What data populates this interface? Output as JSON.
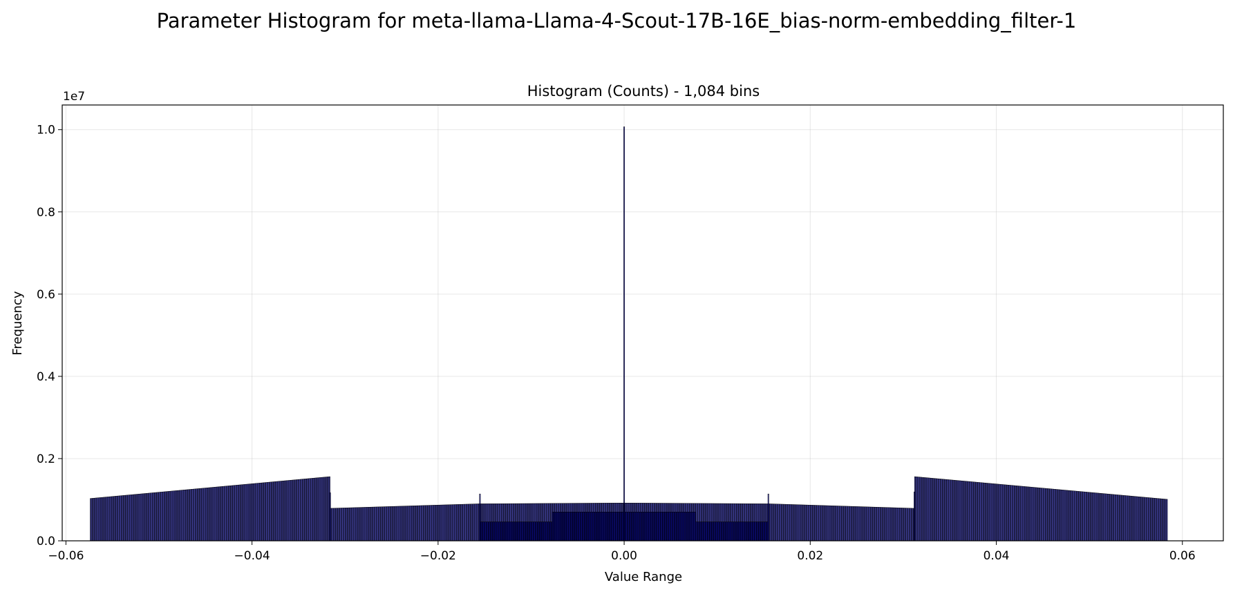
{
  "chart_data": {
    "type": "bar",
    "suptitle": "Parameter Histogram for meta-llama-Llama-4-Scout-17B-16E_bias-norm-embedding_filter-1",
    "title": "Histogram (Counts) - 1,084 bins",
    "xlabel": "Value Range",
    "ylabel": "Frequency",
    "y_offset_label": "1e7",
    "xlim": [
      -0.0604,
      0.0644
    ],
    "ylim": [
      0,
      10600000
    ],
    "xticks": [
      -0.06,
      -0.04,
      -0.02,
      0.0,
      0.02,
      0.04,
      0.06
    ],
    "xtick_labels": [
      "−0.06",
      "−0.04",
      "−0.02",
      "0.00",
      "0.02",
      "0.04",
      "0.06"
    ],
    "yticks": [
      0,
      2000000,
      4000000,
      6000000,
      8000000,
      10000000
    ],
    "ytick_labels": [
      "0.0",
      "0.2",
      "0.4",
      "0.6",
      "0.8",
      "1.0"
    ],
    "grid": true,
    "bar_color": "#00008b",
    "edge_color": "#000000",
    "bins": 1084,
    "segments": [
      {
        "range": [
          -0.0574,
          -0.0316
        ],
        "count_start": 1030000,
        "count_end": 1560000
      },
      {
        "range": [
          -0.0316,
          -0.0155
        ],
        "count_start": 790000,
        "count_end": 900000
      },
      {
        "range": [
          -0.0155,
          0.0
        ],
        "count_start": 900000,
        "count_end": 920000
      },
      {
        "range": [
          0.0,
          0.0155
        ],
        "count_start": 920000,
        "count_end": 900000
      },
      {
        "range": [
          0.0155,
          0.0312
        ],
        "count_start": 900000,
        "count_end": 790000
      },
      {
        "range": [
          0.0312,
          0.0584
        ],
        "count_start": 1560000,
        "count_end": 1010000
      }
    ],
    "sparse_layers": [
      {
        "range": [
          -0.0155,
          -0.0077
        ],
        "count": 460000
      },
      {
        "range": [
          -0.0077,
          0.0
        ],
        "count": 700000
      },
      {
        "range": [
          0.0,
          0.0077
        ],
        "count": 700000
      },
      {
        "range": [
          0.0077,
          0.0155
        ],
        "count": 460000
      }
    ],
    "peaks": [
      {
        "x": 0.0,
        "count": 10070000
      },
      {
        "x": -0.0155,
        "count": 1140000
      },
      {
        "x": 0.0155,
        "count": 1140000
      },
      {
        "x": -0.0316,
        "count": 1170000
      },
      {
        "x": 0.0312,
        "count": 1190000
      }
    ]
  }
}
